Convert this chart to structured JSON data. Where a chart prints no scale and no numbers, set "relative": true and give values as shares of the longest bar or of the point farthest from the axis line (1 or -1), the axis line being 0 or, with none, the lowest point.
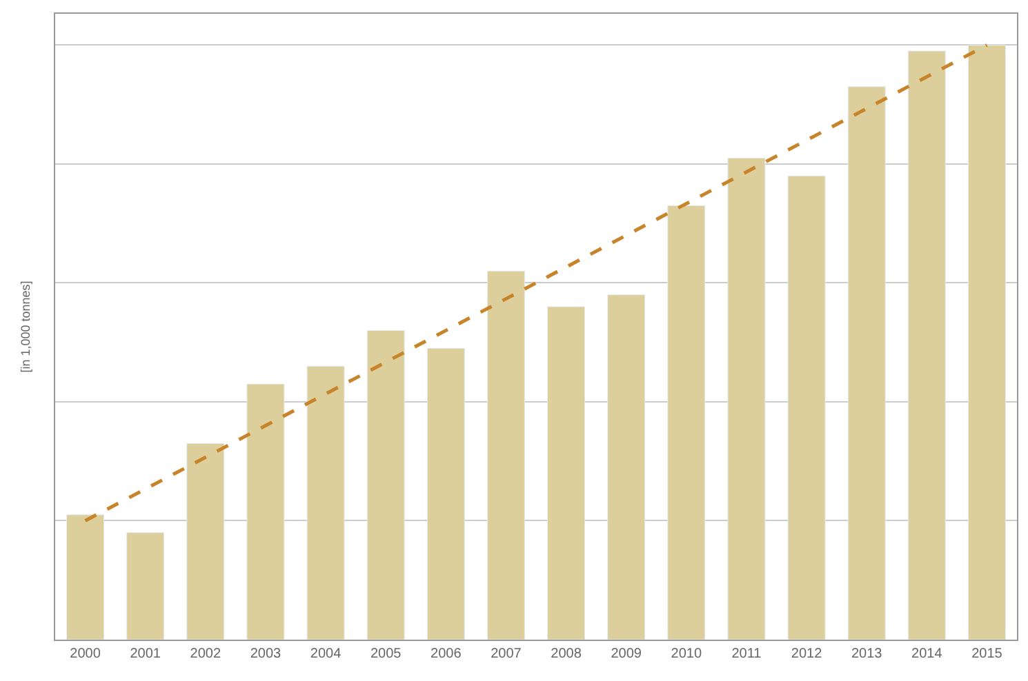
{
  "chart_data": {
    "type": "bar",
    "relative": true,
    "ylabel": "[in 1,000 tonnes]",
    "categories": [
      "2000",
      "2001",
      "2002",
      "2003",
      "2004",
      "2005",
      "2006",
      "2007",
      "2008",
      "2009",
      "2010",
      "2011",
      "2012",
      "2013",
      "2014",
      "2015"
    ],
    "series": [
      {
        "color": "#dccf9c",
        "values": [
          0.21,
          0.18,
          0.33,
          0.43,
          0.46,
          0.52,
          0.49,
          0.62,
          0.56,
          0.58,
          0.73,
          0.81,
          0.78,
          0.93,
          0.99,
          1.0
        ]
      },
      {
        "type": "line",
        "color": "#c8842a",
        "line_style": "dashed",
        "marker": "none",
        "values": [
          0.2,
          null,
          null,
          null,
          null,
          null,
          null,
          null,
          null,
          null,
          null,
          null,
          null,
          null,
          null,
          1.0
        ]
      }
    ],
    "grid": "y",
    "legend": false
  }
}
